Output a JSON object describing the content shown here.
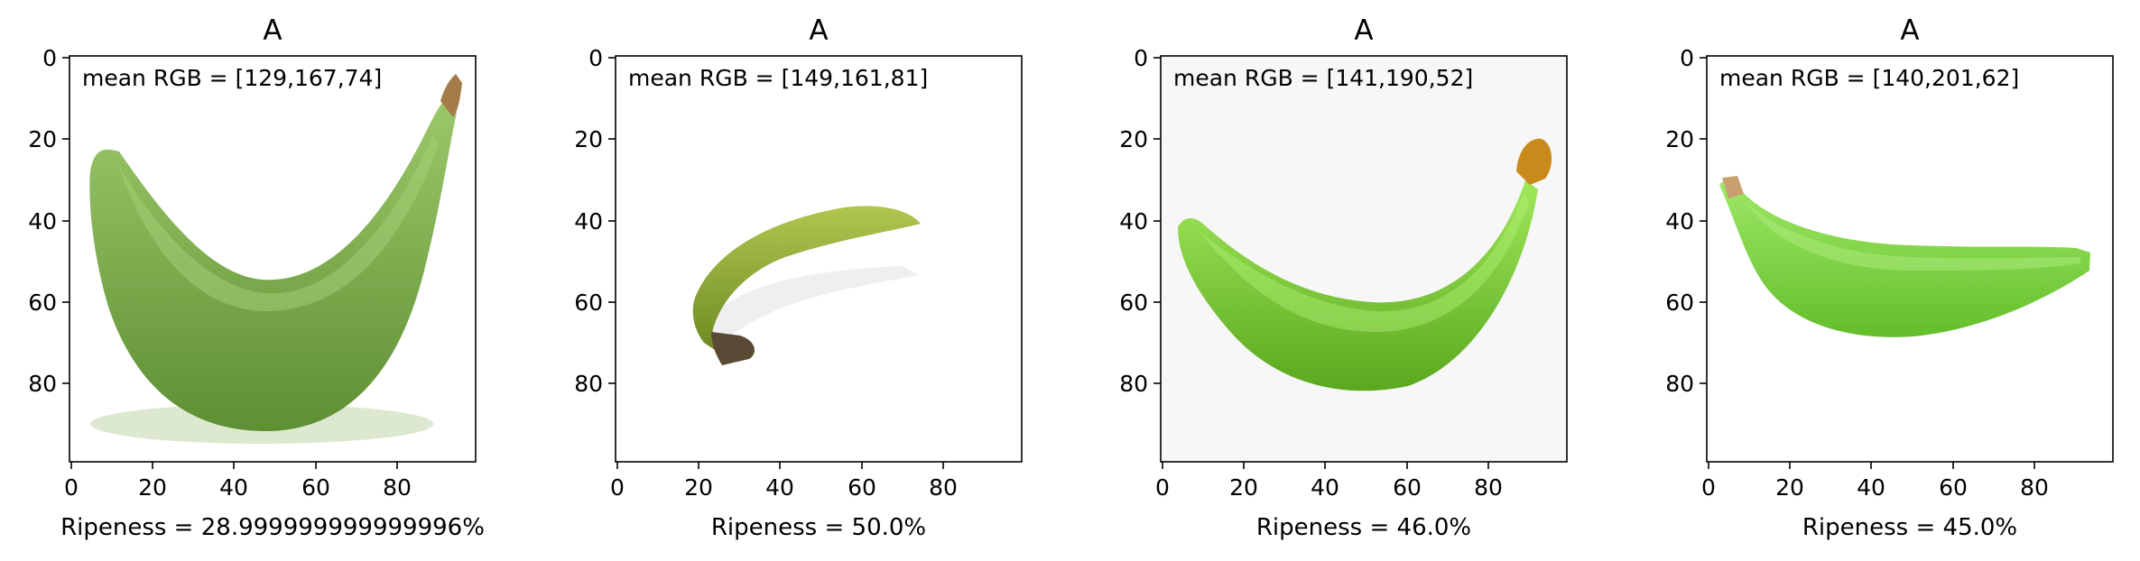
{
  "panels": [
    {
      "title": "A",
      "annotation": "mean RGB = [129,167,74]",
      "xlabel": "Ripeness = 28.999999999999996%",
      "background": "#ffffff",
      "banana": {
        "description_icon": "banana-photo",
        "fill": "#7aab45",
        "fill_light": "#9cc86a",
        "fill_dark": "#5e8f33",
        "stem": "#a57b4a",
        "shadow": "#c8d8b8"
      }
    },
    {
      "title": "A",
      "annotation": "mean RGB = [149,161,81]",
      "xlabel": "Ripeness = 50.0%",
      "background": "#ffffff",
      "banana": {
        "description_icon": "banana-photo",
        "fill": "#8faa33",
        "fill_light": "#b0c64f",
        "fill_dark": "#6d8a22",
        "stem": "#5a4a35",
        "shadow": "#e6e6e6"
      }
    },
    {
      "title": "A",
      "annotation": "mean RGB = [141,190,52]",
      "xlabel": "Ripeness = 46.0%",
      "background": "#f7f7f7",
      "banana": {
        "description_icon": "banana-photo",
        "fill": "#7ed432",
        "fill_light": "#a0e85a",
        "fill_dark": "#5aa81e",
        "stem": "#c98a1c",
        "shadow": "#f7f7f7"
      }
    },
    {
      "title": "A",
      "annotation": "mean RGB = [140,201,62]",
      "xlabel": "Ripeness = 45.0%",
      "background": "#ffffff",
      "banana": {
        "description_icon": "banana-photo",
        "fill": "#7cd63a",
        "fill_light": "#9ee867",
        "fill_dark": "#63be2a",
        "stem": "#c8a070",
        "shadow": "#ffffff"
      }
    }
  ],
  "axes": {
    "x_ticks": [
      "0",
      "20",
      "40",
      "60",
      "80"
    ],
    "y_ticks": [
      "0",
      "20",
      "40",
      "60",
      "80"
    ],
    "xlim": [
      0,
      100
    ],
    "ylim": [
      100,
      0
    ]
  }
}
